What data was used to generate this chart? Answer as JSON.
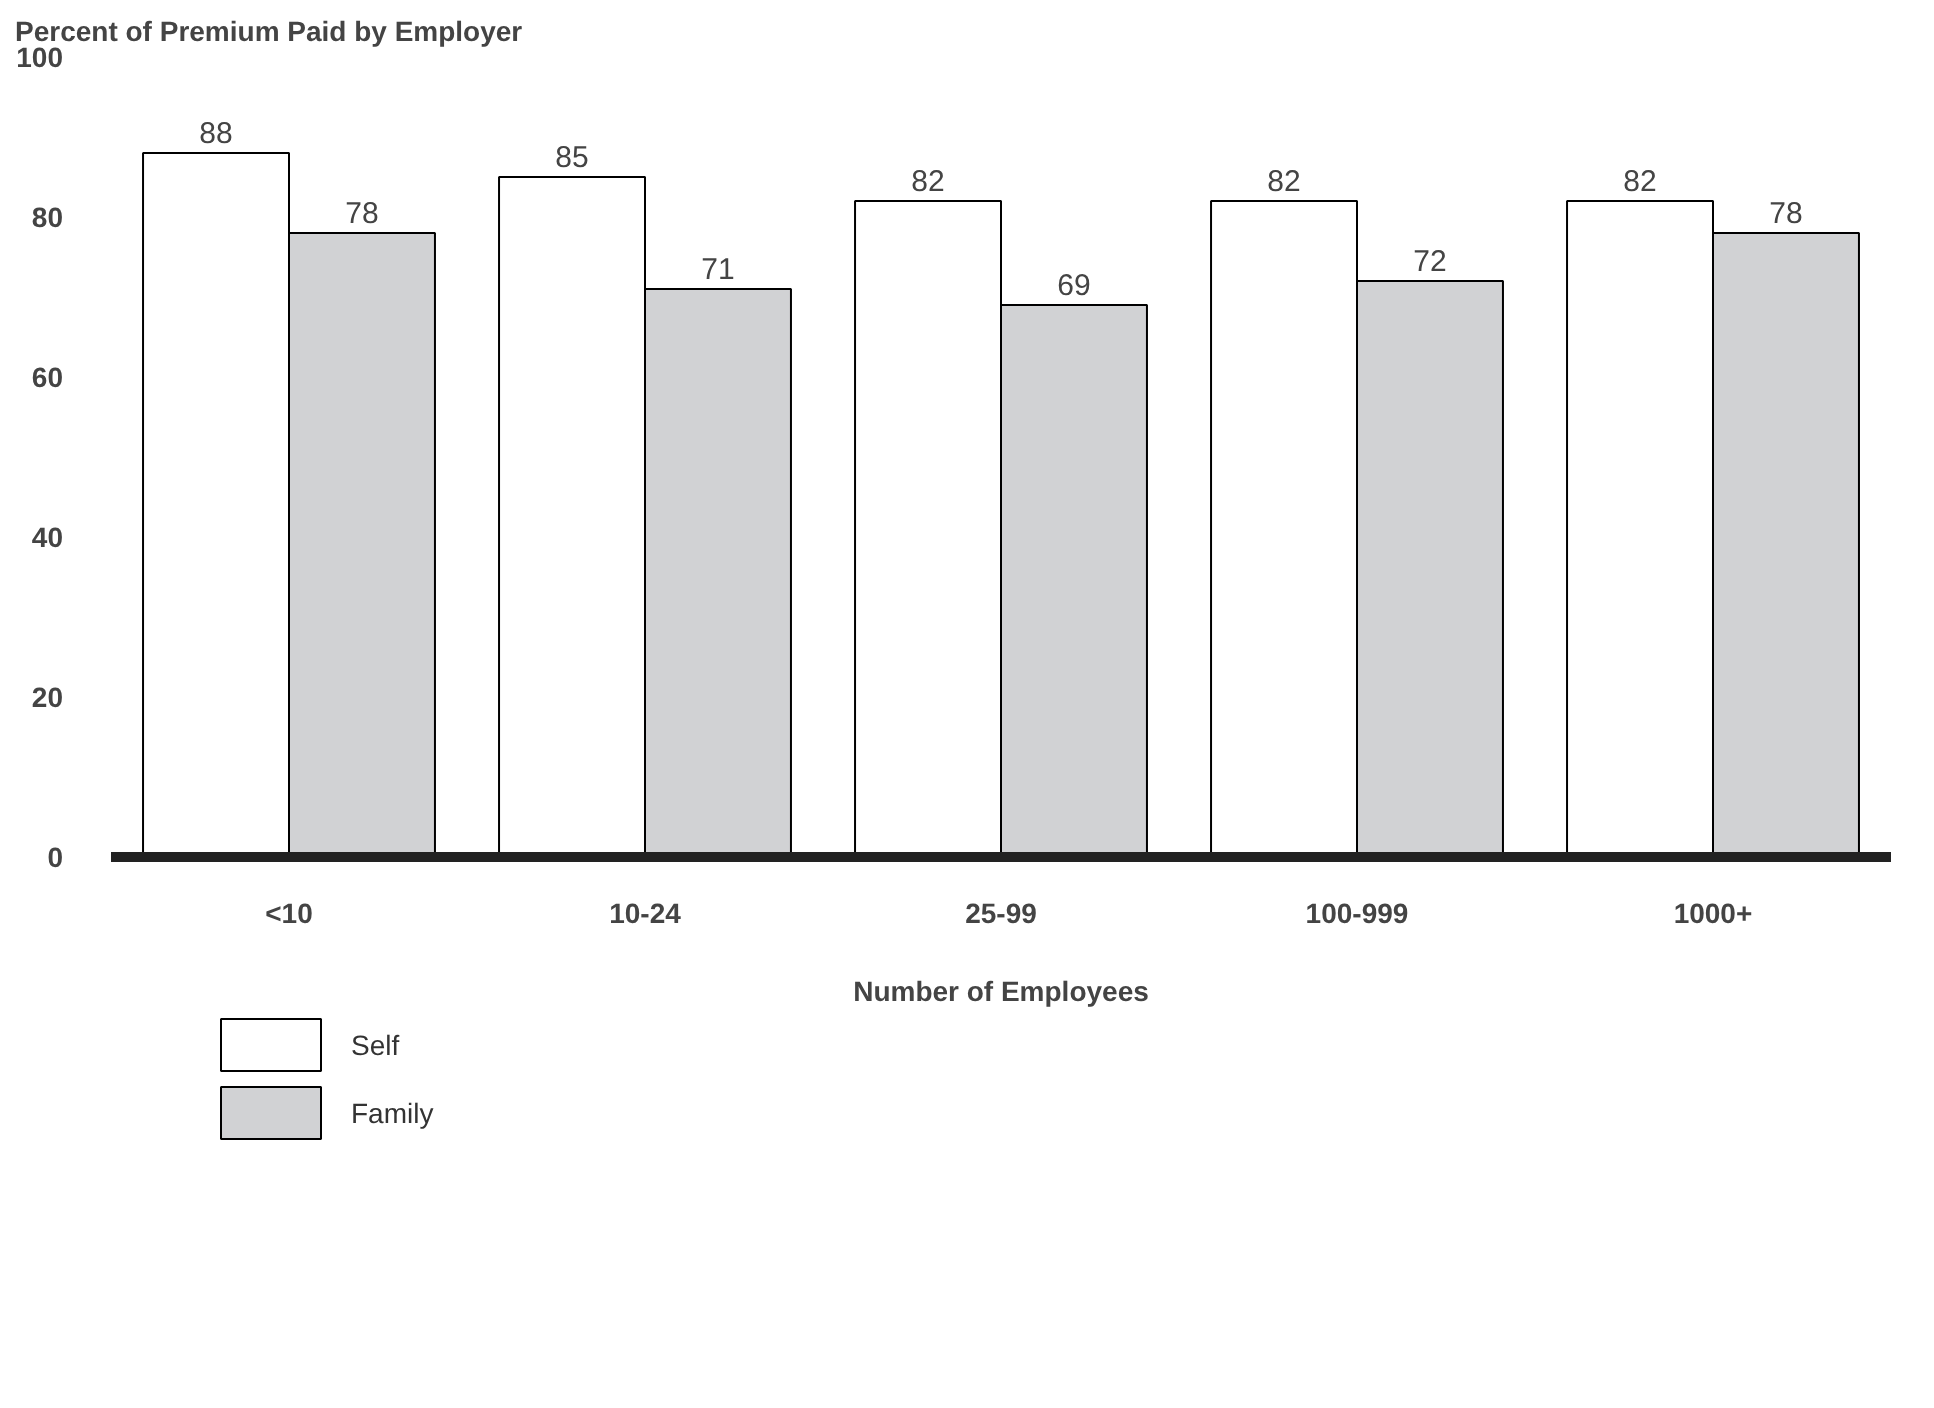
{
  "chart_data": {
    "type": "bar",
    "ylabel": "Percent of Premium Paid by Employer",
    "xlabel": "Number of Employees",
    "categories": [
      "<10",
      "10-24",
      "25-99",
      "100-999",
      "1000+"
    ],
    "series": [
      {
        "name": "Self",
        "color": "#ffffff",
        "values": [
          88,
          85,
          82,
          82,
          82
        ]
      },
      {
        "name": "Family",
        "color": "#d1d2d4",
        "values": [
          78,
          71,
          69,
          72,
          78
        ]
      }
    ],
    "ylim": [
      0,
      100
    ],
    "yticks": [
      0,
      20,
      40,
      60,
      80,
      100
    ],
    "grid": false,
    "legend": "bottom left",
    "data_labels": true
  }
}
